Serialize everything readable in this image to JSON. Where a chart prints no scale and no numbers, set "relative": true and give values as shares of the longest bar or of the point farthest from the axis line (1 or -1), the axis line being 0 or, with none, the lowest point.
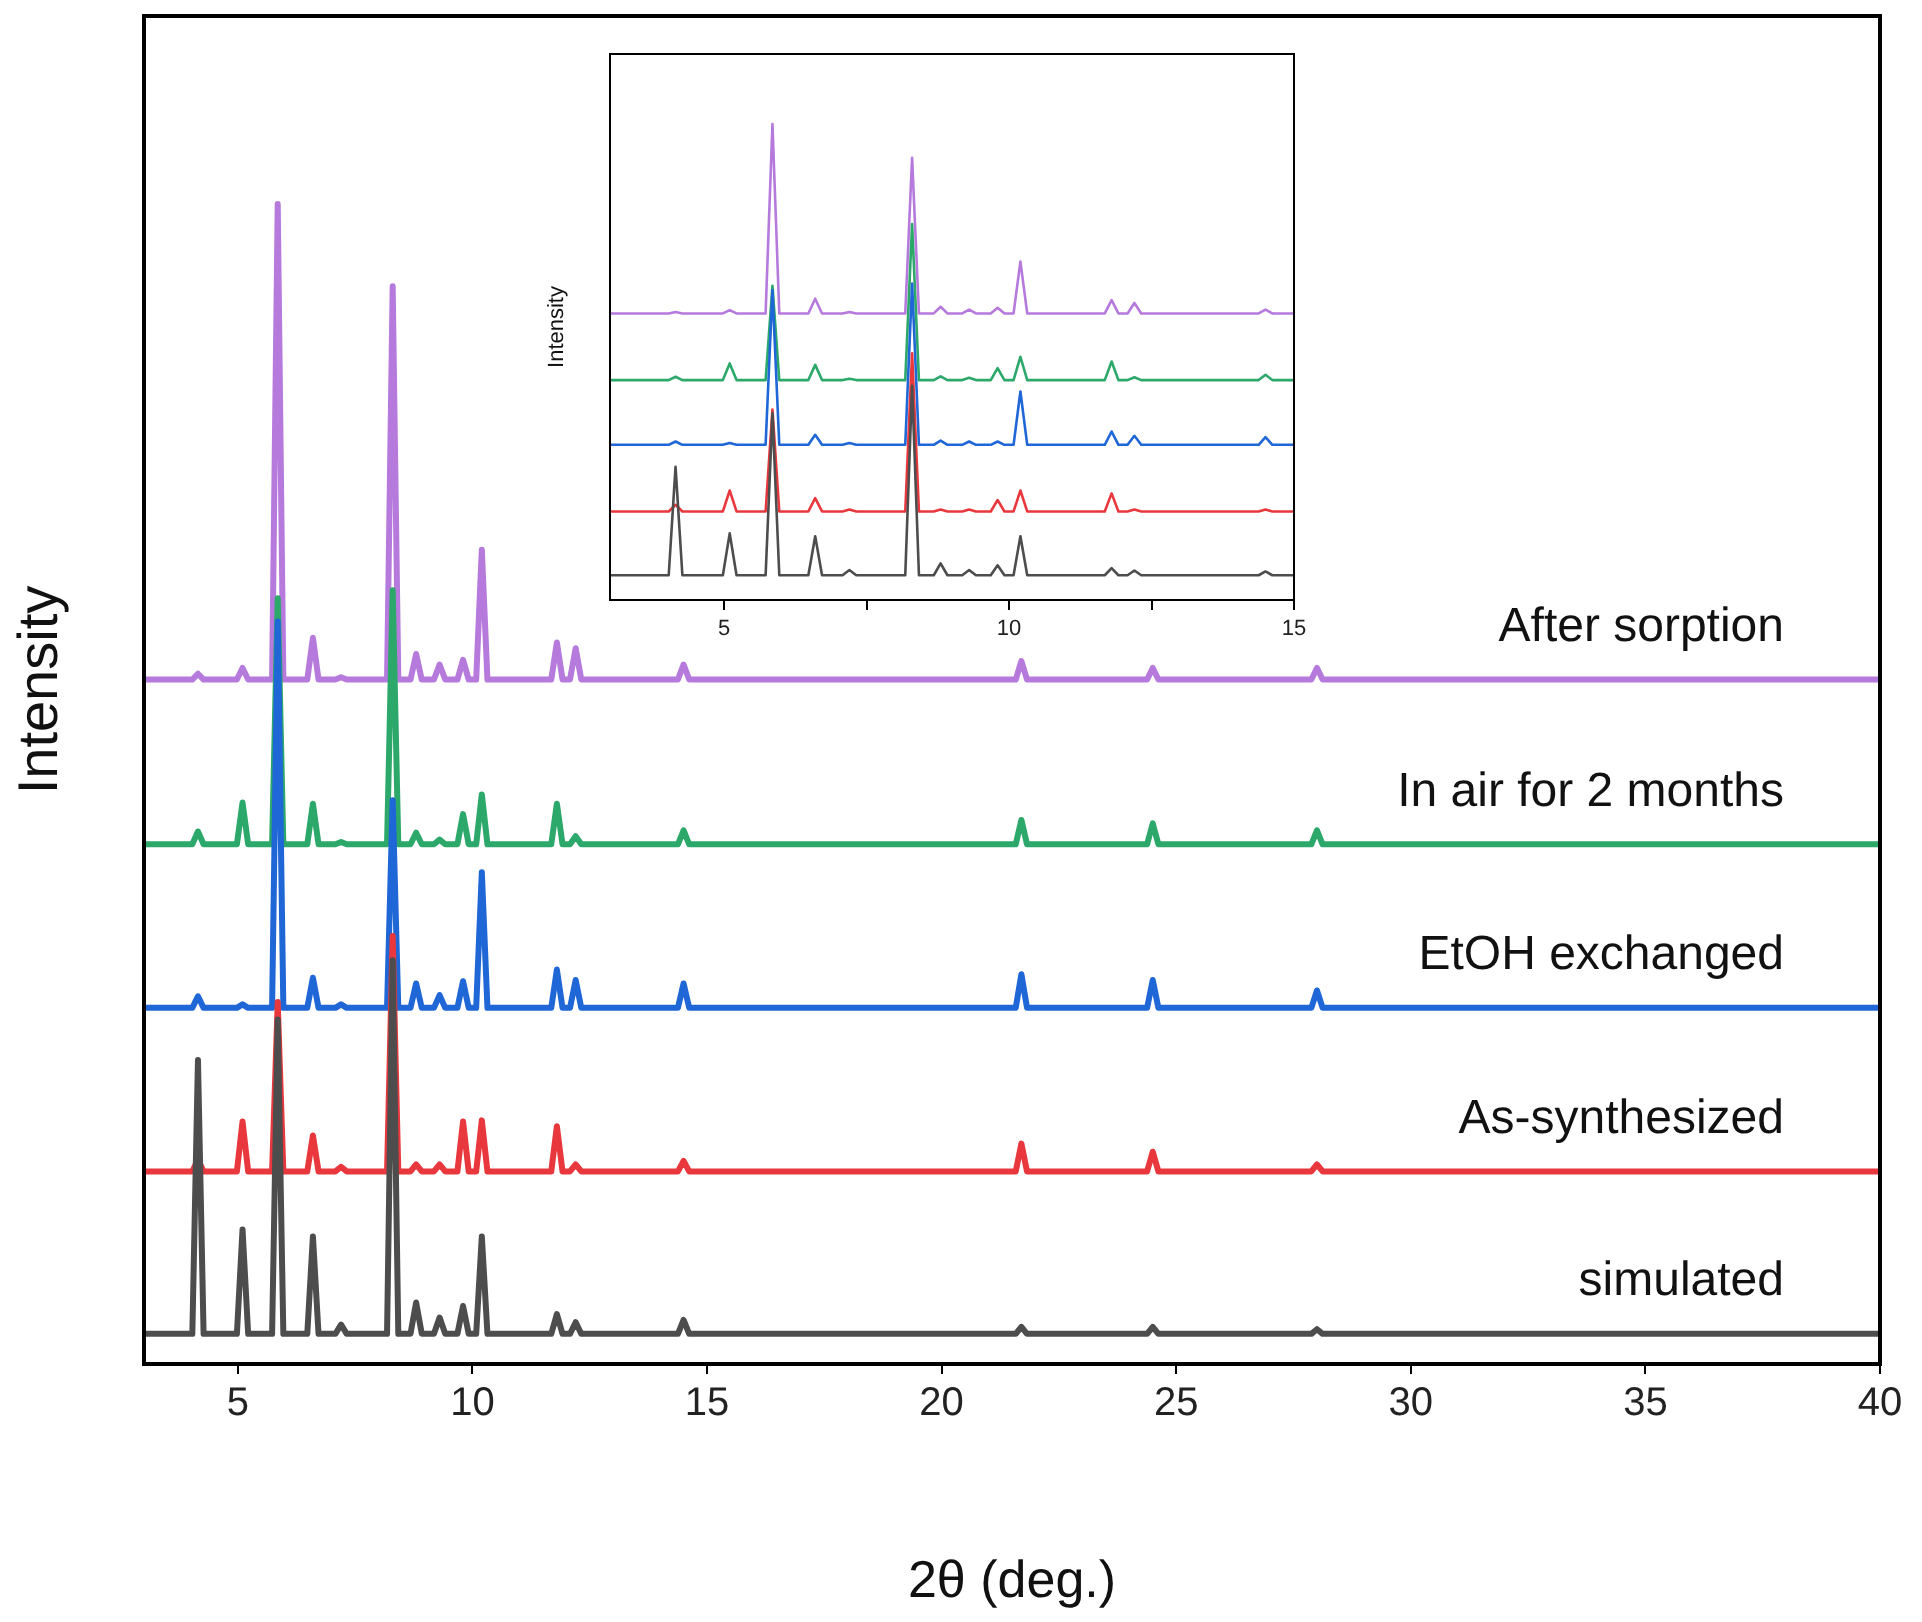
{
  "chart_data": [
    {
      "type": "line",
      "xlabel": "2θ (deg.)",
      "ylabel": "Intensity",
      "relative": true,
      "xlim": [
        3,
        40
      ],
      "xticks": [
        5,
        10,
        15,
        20,
        25,
        30,
        35,
        40
      ],
      "x": [
        3,
        4.03,
        4.15,
        4.27,
        4.98,
        5.1,
        5.22,
        5.73,
        5.85,
        5.97,
        6.48,
        6.6,
        6.72,
        7.08,
        7.2,
        7.32,
        8.18,
        8.3,
        8.42,
        8.68,
        8.8,
        8.92,
        9.18,
        9.3,
        9.42,
        9.68,
        9.8,
        9.92,
        10.08,
        10.2,
        10.32,
        11.68,
        11.8,
        11.92,
        12.08,
        12.2,
        12.32,
        14.38,
        14.5,
        14.62,
        21.58,
        21.7,
        21.82,
        24.38,
        24.5,
        24.62,
        27.88,
        28,
        28.12,
        40
      ],
      "series": [
        {
          "name": "simulated",
          "color": "#4d4d4d",
          "values": [
            0.026,
            0.026,
            0.262,
            0.026,
            0.026,
            0.116,
            0.026,
            0.026,
            0.297,
            0.026,
            0.026,
            0.11,
            0.026,
            0.026,
            0.034,
            0.026,
            0.026,
            0.348,
            0.026,
            0.026,
            0.053,
            0.026,
            0.026,
            0.04,
            0.026,
            0.026,
            0.05,
            0.026,
            0.026,
            0.11,
            0.026,
            0.026,
            0.043,
            0.026,
            0.026,
            0.036,
            0.026,
            0.026,
            0.038,
            0.026,
            0.026,
            0.032,
            0.026,
            0.026,
            0.032,
            0.026,
            0.026,
            0.03,
            0.026,
            0.026
          ]
        },
        {
          "name": "As-synthesized",
          "color": "#e8383d",
          "values": [
            0.166,
            0.166,
            0.176,
            0.166,
            0.166,
            0.209,
            0.166,
            0.166,
            0.312,
            0.166,
            0.166,
            0.197,
            0.166,
            0.166,
            0.17,
            0.166,
            0.166,
            0.369,
            0.166,
            0.166,
            0.172,
            0.166,
            0.166,
            0.172,
            0.166,
            0.166,
            0.209,
            0.166,
            0.166,
            0.21,
            0.166,
            0.166,
            0.205,
            0.166,
            0.166,
            0.172,
            0.166,
            0.166,
            0.175,
            0.166,
            0.166,
            0.19,
            0.166,
            0.166,
            0.183,
            0.166,
            0.166,
            0.172,
            0.166,
            0.166
          ]
        },
        {
          "name": "EtOH exchanged",
          "color": "#1f66d6",
          "values": [
            0.307,
            0.307,
            0.317,
            0.307,
            0.307,
            0.31,
            0.307,
            0.307,
            0.64,
            0.307,
            0.307,
            0.333,
            0.307,
            0.307,
            0.31,
            0.307,
            0.307,
            0.486,
            0.307,
            0.307,
            0.328,
            0.307,
            0.307,
            0.318,
            0.307,
            0.307,
            0.33,
            0.307,
            0.307,
            0.424,
            0.307,
            0.307,
            0.34,
            0.307,
            0.307,
            0.331,
            0.307,
            0.307,
            0.328,
            0.307,
            0.307,
            0.336,
            0.307,
            0.307,
            0.331,
            0.307,
            0.307,
            0.322,
            0.307,
            0.307
          ]
        },
        {
          "name": "In air for 2 months",
          "color": "#2ca86a",
          "values": [
            0.448,
            0.448,
            0.459,
            0.448,
            0.448,
            0.484,
            0.448,
            0.448,
            0.66,
            0.448,
            0.448,
            0.483,
            0.448,
            0.448,
            0.45,
            0.448,
            0.448,
            0.667,
            0.448,
            0.448,
            0.458,
            0.448,
            0.448,
            0.452,
            0.448,
            0.448,
            0.474,
            0.448,
            0.448,
            0.491,
            0.448,
            0.448,
            0.483,
            0.448,
            0.448,
            0.455,
            0.448,
            0.448,
            0.46,
            0.448,
            0.448,
            0.469,
            0.448,
            0.448,
            0.466,
            0.448,
            0.448,
            0.46,
            0.448,
            0.448
          ]
        },
        {
          "name": "After sorption",
          "color": "#b679dc",
          "values": [
            0.59,
            0.59,
            0.595,
            0.59,
            0.59,
            0.6,
            0.59,
            0.59,
            1,
            0.59,
            0.59,
            0.626,
            0.59,
            0.59,
            0.592,
            0.59,
            0.59,
            0.929,
            0.59,
            0.59,
            0.612,
            0.59,
            0.59,
            0.603,
            0.59,
            0.59,
            0.607,
            0.59,
            0.59,
            0.702,
            0.59,
            0.59,
            0.622,
            0.59,
            0.59,
            0.617,
            0.59,
            0.59,
            0.603,
            0.59,
            0.59,
            0.606,
            0.59,
            0.59,
            0.6,
            0.59,
            0.59,
            0.6,
            0.59,
            0.59
          ]
        }
      ]
    },
    {
      "type": "line",
      "ylabel": "Intensity",
      "relative": true,
      "xlim": [
        3,
        15
      ],
      "xticks": [
        5,
        {
          "value": 7.5,
          "label": null
        },
        10,
        {
          "value": 12.5,
          "label": null
        },
        15
      ],
      "x": [
        3,
        4.03,
        4.15,
        4.27,
        4.98,
        5.1,
        5.22,
        5.73,
        5.85,
        5.97,
        6.48,
        6.6,
        6.72,
        7.08,
        7.2,
        7.32,
        8.18,
        8.3,
        8.42,
        8.68,
        8.8,
        8.92,
        9.18,
        9.3,
        9.42,
        9.68,
        9.8,
        9.92,
        10.08,
        10.2,
        10.32,
        11.68,
        11.8,
        11.92,
        12.08,
        12.2,
        12.32,
        14.38,
        14.5,
        14.62,
        15
      ],
      "series": [
        {
          "color": "#4d4d4d",
          "values": [
            0.052,
            0.052,
            0.28,
            0.052,
            0.052,
            0.14,
            0.052,
            0.052,
            0.392,
            0.052,
            0.052,
            0.134,
            0.052,
            0.052,
            0.063,
            0.052,
            0.052,
            0.45,
            0.052,
            0.052,
            0.077,
            0.052,
            0.052,
            0.063,
            0.052,
            0.052,
            0.073,
            0.052,
            0.052,
            0.134,
            0.052,
            0.052,
            0.067,
            0.052,
            0.052,
            0.062,
            0.052,
            0.052,
            0.06,
            0.052,
            0.052
          ]
        },
        {
          "color": "#e8383d",
          "values": [
            0.186,
            0.186,
            0.2,
            0.186,
            0.186,
            0.23,
            0.186,
            0.186,
            0.4,
            0.186,
            0.186,
            0.214,
            0.186,
            0.186,
            0.19,
            0.186,
            0.186,
            0.518,
            0.186,
            0.186,
            0.19,
            0.186,
            0.186,
            0.19,
            0.186,
            0.186,
            0.21,
            0.186,
            0.186,
            0.23,
            0.186,
            0.186,
            0.224,
            0.186,
            0.186,
            0.19,
            0.186,
            0.186,
            0.19,
            0.186,
            0.186
          ]
        },
        {
          "color": "#1f66d6",
          "values": [
            0.326,
            0.326,
            0.333,
            0.326,
            0.326,
            0.33,
            0.326,
            0.326,
            0.651,
            0.326,
            0.326,
            0.347,
            0.326,
            0.326,
            0.33,
            0.326,
            0.326,
            0.665,
            0.326,
            0.326,
            0.335,
            0.326,
            0.326,
            0.333,
            0.326,
            0.326,
            0.333,
            0.326,
            0.326,
            0.438,
            0.326,
            0.326,
            0.354,
            0.326,
            0.326,
            0.345,
            0.326,
            0.326,
            0.342,
            0.326,
            0.326
          ]
        },
        {
          "color": "#2ca86a",
          "values": [
            0.462,
            0.462,
            0.469,
            0.462,
            0.462,
            0.497,
            0.462,
            0.462,
            0.66,
            0.462,
            0.462,
            0.494,
            0.462,
            0.462,
            0.465,
            0.462,
            0.462,
            0.79,
            0.462,
            0.462,
            0.47,
            0.462,
            0.462,
            0.467,
            0.462,
            0.462,
            0.487,
            0.462,
            0.462,
            0.511,
            0.462,
            0.462,
            0.501,
            0.462,
            0.462,
            0.468,
            0.462,
            0.462,
            0.473,
            0.462,
            0.462
          ]
        },
        {
          "color": "#b679dc",
          "values": [
            0.602,
            0.602,
            0.605,
            0.602,
            0.602,
            0.609,
            0.602,
            0.602,
            1,
            0.602,
            0.602,
            0.633,
            0.602,
            0.602,
            0.605,
            0.602,
            0.602,
            0.929,
            0.602,
            0.602,
            0.616,
            0.602,
            0.602,
            0.61,
            0.602,
            0.602,
            0.614,
            0.602,
            0.602,
            0.711,
            0.602,
            0.602,
            0.63,
            0.602,
            0.602,
            0.624,
            0.602,
            0.602,
            0.61,
            0.602,
            0.602
          ]
        }
      ]
    }
  ]
}
